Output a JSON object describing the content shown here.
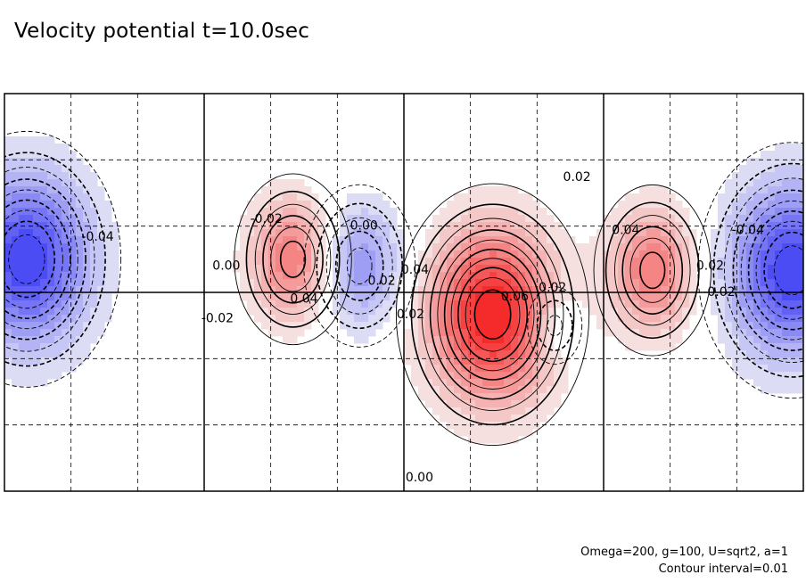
{
  "title": "Velocity potential t=10.0sec",
  "footnotes": {
    "params": "Omega=200, g=100, U=sqrt2, a=1",
    "interval": "Contour interval=0.01"
  },
  "chart_data": {
    "type": "heatmap",
    "title": "Velocity potential t=10.0sec",
    "xlim": [
      0,
      360
    ],
    "ylim": [
      -90,
      90
    ],
    "grid": true,
    "contour_interval": 0.01,
    "colors": {
      "negative": "#2a2af0",
      "positive": "#f01818",
      "zero": "#ffffff"
    },
    "features": [
      {
        "kind": "min",
        "lon": 10,
        "lat": 15,
        "value": -0.09
      },
      {
        "kind": "min",
        "lon": 355,
        "lat": 10,
        "value": -0.09
      },
      {
        "kind": "min",
        "lon": 160,
        "lat": 12,
        "value": -0.05
      },
      {
        "kind": "min",
        "lon": 248,
        "lat": -15,
        "value": -0.03
      },
      {
        "kind": "max",
        "lon": 130,
        "lat": 15,
        "value": 0.06
      },
      {
        "kind": "max",
        "lon": 220,
        "lat": -10,
        "value": 0.1
      },
      {
        "kind": "max",
        "lon": 292,
        "lat": 10,
        "value": 0.06
      }
    ],
    "contour_labels": [
      {
        "text": "0.02",
        "lon": 258,
        "lat": 52
      },
      {
        "text": "0.04",
        "lon": 280,
        "lat": 28
      },
      {
        "text": "-0.04",
        "lon": 335,
        "lat": 28
      },
      {
        "text": "-0.02",
        "lon": 322,
        "lat": 0
      },
      {
        "text": "0.02",
        "lon": 318,
        "lat": 12
      },
      {
        "text": "-0.04",
        "lon": 42,
        "lat": 25
      },
      {
        "text": "-0.02",
        "lon": 118,
        "lat": 33
      },
      {
        "text": "0.00",
        "lon": 100,
        "lat": 12
      },
      {
        "text": "0.04",
        "lon": 135,
        "lat": -3
      },
      {
        "text": "-0.02",
        "lon": 96,
        "lat": -12
      },
      {
        "text": "0.00",
        "lon": 162,
        "lat": 30
      },
      {
        "text": "0.02",
        "lon": 170,
        "lat": 5
      },
      {
        "text": "0.04",
        "lon": 185,
        "lat": 10
      },
      {
        "text": "0.02",
        "lon": 183,
        "lat": -10
      },
      {
        "text": "0.06",
        "lon": 230,
        "lat": -2
      },
      {
        "text": "0.02",
        "lon": 247,
        "lat": 2
      },
      {
        "text": "0.00",
        "lon": 187,
        "lat": -84
      }
    ]
  }
}
